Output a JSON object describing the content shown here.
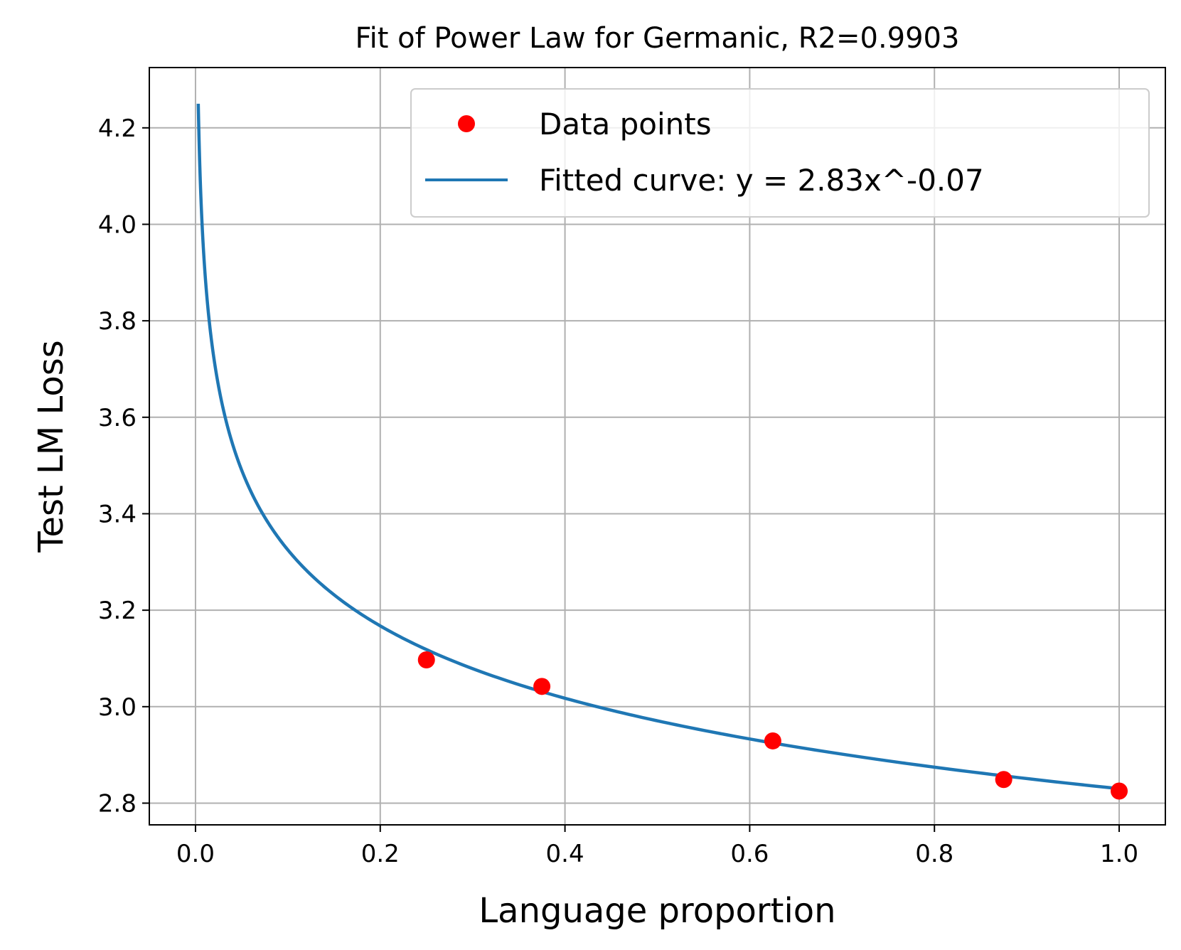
{
  "chart_data": {
    "type": "scatter",
    "title": "Fit of Power Law for Germanic, R2=0.9903",
    "xlabel": "Language proportion",
    "ylabel": "Test LM Loss",
    "xlim": [
      -0.05,
      1.05
    ],
    "ylim": [
      2.755,
      4.325
    ],
    "xticks": [
      0.0,
      0.2,
      0.4,
      0.6,
      0.8,
      1.0
    ],
    "xtick_labels": [
      "0.0",
      "0.2",
      "0.4",
      "0.6",
      "0.8",
      "1.0"
    ],
    "yticks": [
      2.8,
      3.0,
      3.2,
      3.4,
      3.6,
      3.8,
      4.0,
      4.2
    ],
    "ytick_labels": [
      "2.8",
      "3.0",
      "3.2",
      "3.4",
      "3.6",
      "3.8",
      "4.0",
      "4.2"
    ],
    "grid": true,
    "legend_position": "top-right",
    "series": [
      {
        "name": "Data points",
        "kind": "scatter",
        "color": "#ff0000",
        "x": [
          0.25,
          0.375,
          0.625,
          0.875,
          1.0
        ],
        "y": [
          3.097,
          3.042,
          2.929,
          2.849,
          2.825
        ]
      },
      {
        "name": "Fitted curve: y = 2.83x^-0.07",
        "kind": "line",
        "color": "#1f77b4",
        "x_range": [
          0.003,
          1.0
        ],
        "coef_a": 2.83,
        "exponent_b": -0.07
      }
    ]
  }
}
